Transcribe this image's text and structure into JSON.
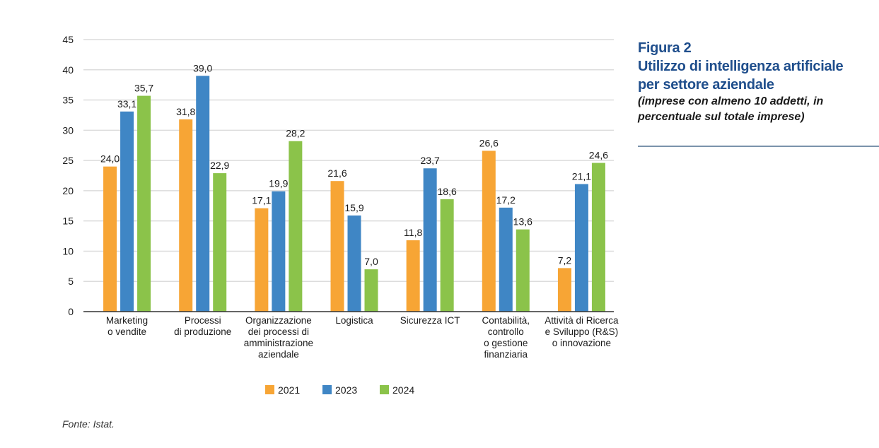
{
  "figure": {
    "number": "Figura 2",
    "title_line1": "Utilizzo di intelligenza artificiale",
    "title_line2": "per settore aziendale",
    "subtitle_line1": "(imprese con almeno 10 addetti, in",
    "subtitle_line2": "percentuale sul totale imprese)"
  },
  "source": "Fonte: Istat.",
  "chart_data": {
    "type": "bar",
    "title": "Utilizzo di intelligenza artificiale per settore aziendale",
    "subtitle": "(imprese con almeno 10 addetti, in percentuale sul totale imprese)",
    "xlabel": "",
    "ylabel": "",
    "ylim": [
      0,
      45
    ],
    "yticks": [
      0,
      5,
      10,
      15,
      20,
      25,
      30,
      35,
      40,
      45
    ],
    "grid": true,
    "legend_position": "bottom-center",
    "categories": [
      [
        "Marketing",
        "o vendite"
      ],
      [
        "Processi",
        "di produzione"
      ],
      [
        "Organizzazione",
        "dei processi di",
        "amministrazione",
        "aziendale"
      ],
      [
        "Logistica"
      ],
      [
        "Sicurezza ICT"
      ],
      [
        "Contabilità,",
        "controllo",
        "o gestione",
        "finanziaria"
      ],
      [
        "Attività di Ricerca",
        "e Sviluppo (R&S)",
        "o innovazione"
      ]
    ],
    "series": [
      {
        "name": "2021",
        "color": "#f7a535",
        "values": [
          24.0,
          31.8,
          17.1,
          21.6,
          11.8,
          26.6,
          7.2
        ],
        "labels": [
          "24,0",
          "31,8",
          "17,1",
          "21,6",
          "11,8",
          "26,6",
          "7,2"
        ]
      },
      {
        "name": "2023",
        "color": "#3f86c5",
        "values": [
          33.1,
          39.0,
          19.9,
          15.9,
          23.7,
          17.2,
          21.1
        ],
        "labels": [
          "33,1",
          "39,0",
          "19,9",
          "15,9",
          "23,7",
          "17,2",
          "21,1"
        ]
      },
      {
        "name": "2024",
        "color": "#8bc34a",
        "values": [
          35.7,
          22.9,
          28.2,
          7.0,
          18.6,
          13.6,
          24.6
        ],
        "labels": [
          "35,7",
          "22,9",
          "28,2",
          "7,0",
          "18,6",
          "13,6",
          "24,6"
        ]
      }
    ]
  }
}
